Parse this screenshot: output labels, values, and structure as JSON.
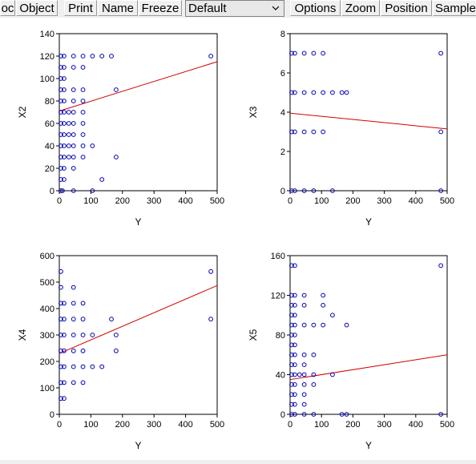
{
  "toolbar": {
    "proc_label": "oc",
    "object_label": "Object",
    "print_label": "Print",
    "name_label": "Name",
    "freeze_label": "Freeze",
    "view_select_value": "Default",
    "options_label": "Options",
    "zoom_label": "Zoom",
    "position_label": "Position",
    "sample_label": "Sample"
  },
  "chart_data": [
    {
      "type": "scatter",
      "xlabel": "Y",
      "ylabel": "X2",
      "xlim": [
        0,
        500
      ],
      "ylim": [
        0,
        140
      ],
      "xticks": [
        0,
        100,
        200,
        300,
        400,
        500
      ],
      "yticks": [
        0,
        20,
        40,
        60,
        80,
        100,
        120,
        140
      ],
      "points": [
        [
          5,
          0
        ],
        [
          10,
          0
        ],
        [
          45,
          0
        ],
        [
          105,
          0
        ],
        [
          5,
          10
        ],
        [
          15,
          10
        ],
        [
          5,
          20
        ],
        [
          15,
          20
        ],
        [
          45,
          20
        ],
        [
          5,
          30
        ],
        [
          15,
          30
        ],
        [
          30,
          30
        ],
        [
          45,
          30
        ],
        [
          75,
          30
        ],
        [
          180,
          30
        ],
        [
          5,
          40
        ],
        [
          15,
          40
        ],
        [
          30,
          40
        ],
        [
          45,
          40
        ],
        [
          75,
          40
        ],
        [
          105,
          40
        ],
        [
          5,
          50
        ],
        [
          15,
          50
        ],
        [
          30,
          50
        ],
        [
          45,
          50
        ],
        [
          75,
          50
        ],
        [
          5,
          60
        ],
        [
          15,
          60
        ],
        [
          30,
          60
        ],
        [
          45,
          60
        ],
        [
          75,
          60
        ],
        [
          5,
          70
        ],
        [
          15,
          70
        ],
        [
          30,
          70
        ],
        [
          45,
          70
        ],
        [
          75,
          70
        ],
        [
          5,
          80
        ],
        [
          15,
          80
        ],
        [
          45,
          80
        ],
        [
          75,
          80
        ],
        [
          5,
          90
        ],
        [
          15,
          90
        ],
        [
          45,
          90
        ],
        [
          75,
          90
        ],
        [
          180,
          90
        ],
        [
          5,
          100
        ],
        [
          15,
          100
        ],
        [
          5,
          110
        ],
        [
          15,
          110
        ],
        [
          45,
          110
        ],
        [
          75,
          110
        ],
        [
          5,
          120
        ],
        [
          15,
          120
        ],
        [
          45,
          120
        ],
        [
          75,
          120
        ],
        [
          105,
          120
        ],
        [
          135,
          120
        ],
        [
          165,
          120
        ],
        [
          480,
          120
        ],
        [
          135,
          10
        ]
      ],
      "fit": [
        [
          0,
          71
        ],
        [
          500,
          115
        ]
      ],
      "marker_color": "#0000b0",
      "fit_color": "#d00000"
    },
    {
      "type": "scatter",
      "xlabel": "Y",
      "ylabel": "X3",
      "xlim": [
        0,
        500
      ],
      "ylim": [
        0,
        8
      ],
      "xticks": [
        0,
        100,
        200,
        300,
        400,
        500
      ],
      "yticks": [
        0,
        2,
        4,
        6,
        8
      ],
      "points": [
        [
          5,
          0
        ],
        [
          15,
          0
        ],
        [
          45,
          0
        ],
        [
          75,
          0
        ],
        [
          135,
          0
        ],
        [
          480,
          0
        ],
        [
          5,
          3
        ],
        [
          15,
          3
        ],
        [
          45,
          3
        ],
        [
          75,
          3
        ],
        [
          105,
          3
        ],
        [
          480,
          3
        ],
        [
          5,
          5
        ],
        [
          15,
          5
        ],
        [
          45,
          5
        ],
        [
          75,
          5
        ],
        [
          105,
          5
        ],
        [
          135,
          5
        ],
        [
          165,
          5
        ],
        [
          180,
          5
        ],
        [
          5,
          7
        ],
        [
          15,
          7
        ],
        [
          45,
          7
        ],
        [
          75,
          7
        ],
        [
          105,
          7
        ],
        [
          480,
          7
        ]
      ],
      "fit": [
        [
          0,
          3.95
        ],
        [
          500,
          3.15
        ]
      ],
      "marker_color": "#0000b0",
      "fit_color": "#d00000"
    },
    {
      "type": "scatter",
      "xlabel": "Y",
      "ylabel": "X4",
      "xlim": [
        0,
        500
      ],
      "ylim": [
        0,
        600
      ],
      "xticks": [
        0,
        100,
        200,
        300,
        400,
        500
      ],
      "yticks": [
        0,
        100,
        200,
        300,
        400,
        500,
        600
      ],
      "points": [
        [
          5,
          60
        ],
        [
          15,
          60
        ],
        [
          5,
          120
        ],
        [
          15,
          120
        ],
        [
          45,
          120
        ],
        [
          75,
          120
        ],
        [
          5,
          180
        ],
        [
          15,
          180
        ],
        [
          45,
          180
        ],
        [
          75,
          180
        ],
        [
          105,
          180
        ],
        [
          135,
          180
        ],
        [
          5,
          240
        ],
        [
          15,
          240
        ],
        [
          45,
          240
        ],
        [
          75,
          240
        ],
        [
          180,
          240
        ],
        [
          5,
          300
        ],
        [
          15,
          300
        ],
        [
          45,
          300
        ],
        [
          75,
          300
        ],
        [
          105,
          300
        ],
        [
          180,
          300
        ],
        [
          5,
          360
        ],
        [
          15,
          360
        ],
        [
          45,
          360
        ],
        [
          75,
          360
        ],
        [
          165,
          360
        ],
        [
          480,
          360
        ],
        [
          5,
          420
        ],
        [
          15,
          420
        ],
        [
          45,
          420
        ],
        [
          75,
          420
        ],
        [
          5,
          480
        ],
        [
          45,
          480
        ],
        [
          5,
          540
        ],
        [
          480,
          540
        ]
      ],
      "fit": [
        [
          0,
          230
        ],
        [
          500,
          487
        ]
      ],
      "marker_color": "#0000b0",
      "fit_color": "#d00000"
    },
    {
      "type": "scatter",
      "xlabel": "Y",
      "ylabel": "X5",
      "xlim": [
        0,
        500
      ],
      "ylim": [
        0,
        160
      ],
      "xticks": [
        0,
        100,
        200,
        300,
        400,
        500
      ],
      "yticks": [
        0,
        40,
        80,
        120,
        160
      ],
      "points": [
        [
          5,
          0
        ],
        [
          15,
          0
        ],
        [
          45,
          0
        ],
        [
          75,
          0
        ],
        [
          165,
          0
        ],
        [
          180,
          0
        ],
        [
          480,
          0
        ],
        [
          5,
          10
        ],
        [
          15,
          10
        ],
        [
          45,
          10
        ],
        [
          5,
          20
        ],
        [
          15,
          20
        ],
        [
          45,
          20
        ],
        [
          5,
          30
        ],
        [
          15,
          30
        ],
        [
          45,
          30
        ],
        [
          75,
          30
        ],
        [
          5,
          40
        ],
        [
          15,
          40
        ],
        [
          30,
          40
        ],
        [
          45,
          40
        ],
        [
          75,
          40
        ],
        [
          135,
          40
        ],
        [
          5,
          50
        ],
        [
          15,
          50
        ],
        [
          45,
          50
        ],
        [
          5,
          60
        ],
        [
          15,
          60
        ],
        [
          45,
          60
        ],
        [
          75,
          60
        ],
        [
          5,
          70
        ],
        [
          15,
          70
        ],
        [
          5,
          80
        ],
        [
          15,
          80
        ],
        [
          5,
          90
        ],
        [
          15,
          90
        ],
        [
          45,
          90
        ],
        [
          75,
          90
        ],
        [
          105,
          90
        ],
        [
          180,
          90
        ],
        [
          5,
          100
        ],
        [
          15,
          100
        ],
        [
          135,
          100
        ],
        [
          5,
          110
        ],
        [
          15,
          110
        ],
        [
          45,
          110
        ],
        [
          105,
          110
        ],
        [
          5,
          120
        ],
        [
          15,
          120
        ],
        [
          45,
          120
        ],
        [
          105,
          120
        ],
        [
          5,
          150
        ],
        [
          15,
          150
        ],
        [
          480,
          150
        ]
      ],
      "fit": [
        [
          0,
          35
        ],
        [
          500,
          60
        ]
      ],
      "marker_color": "#0000b0",
      "fit_color": "#d00000"
    }
  ]
}
